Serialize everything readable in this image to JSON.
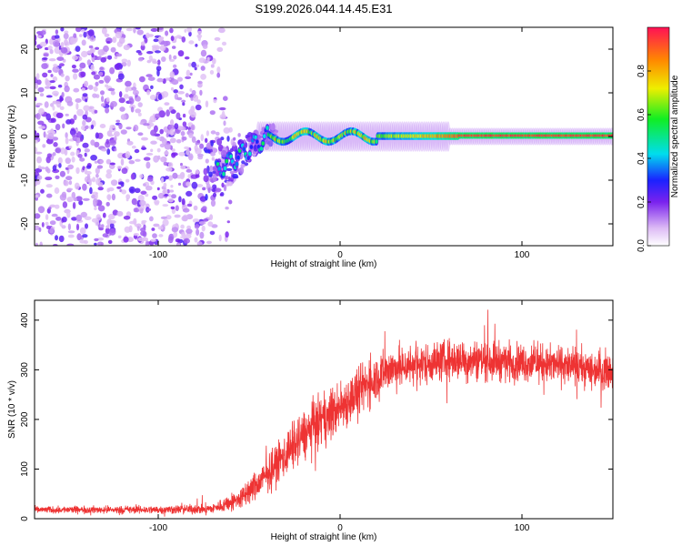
{
  "title": "S199.2026.044.14.45.E31",
  "chart_data": [
    {
      "type": "heatmap",
      "xlabel": "Height of straight line (km)",
      "ylabel": "Frequency (Hz)",
      "xlim": [
        -168,
        150
      ],
      "ylim": [
        -25,
        25
      ],
      "xticks": [
        -100,
        0,
        100
      ],
      "yticks": [
        -20,
        -10,
        0,
        10,
        20
      ],
      "colorbar": {
        "label": "Normalized spectral amplitude",
        "range": [
          0,
          1
        ],
        "ticks": [
          0,
          0.2,
          0.4,
          0.6,
          0.8
        ]
      },
      "features": {
        "noise_region_x": [
          -168,
          -65
        ],
        "transition_x": [
          -65,
          -40
        ],
        "signal_line_frequency_hz": 0,
        "signal_spread_hz": 1.5,
        "max_amplitude_region_x": [
          65,
          150
        ]
      }
    },
    {
      "type": "line",
      "xlabel": "Height of straight line (km)",
      "ylabel": "SNR (10 * v/v)",
      "xlim": [
        -168,
        150
      ],
      "ylim": [
        0,
        440
      ],
      "xticks": [
        -100,
        0,
        100
      ],
      "yticks": [
        0,
        100,
        200,
        300,
        400
      ],
      "color": "#ee3333",
      "envelope": {
        "x": [
          -168,
          -100,
          -70,
          -55,
          -45,
          -35,
          -25,
          -15,
          -5,
          5,
          15,
          25,
          40,
          60,
          80,
          100,
          120,
          140,
          150
        ],
        "mean": [
          18,
          18,
          20,
          40,
          70,
          110,
          150,
          185,
          210,
          240,
          270,
          300,
          310,
          320,
          320,
          315,
          310,
          300,
          300
        ],
        "spread": [
          10,
          12,
          15,
          30,
          45,
          60,
          70,
          75,
          75,
          75,
          70,
          65,
          60,
          60,
          60,
          55,
          55,
          55,
          55
        ]
      }
    }
  ]
}
